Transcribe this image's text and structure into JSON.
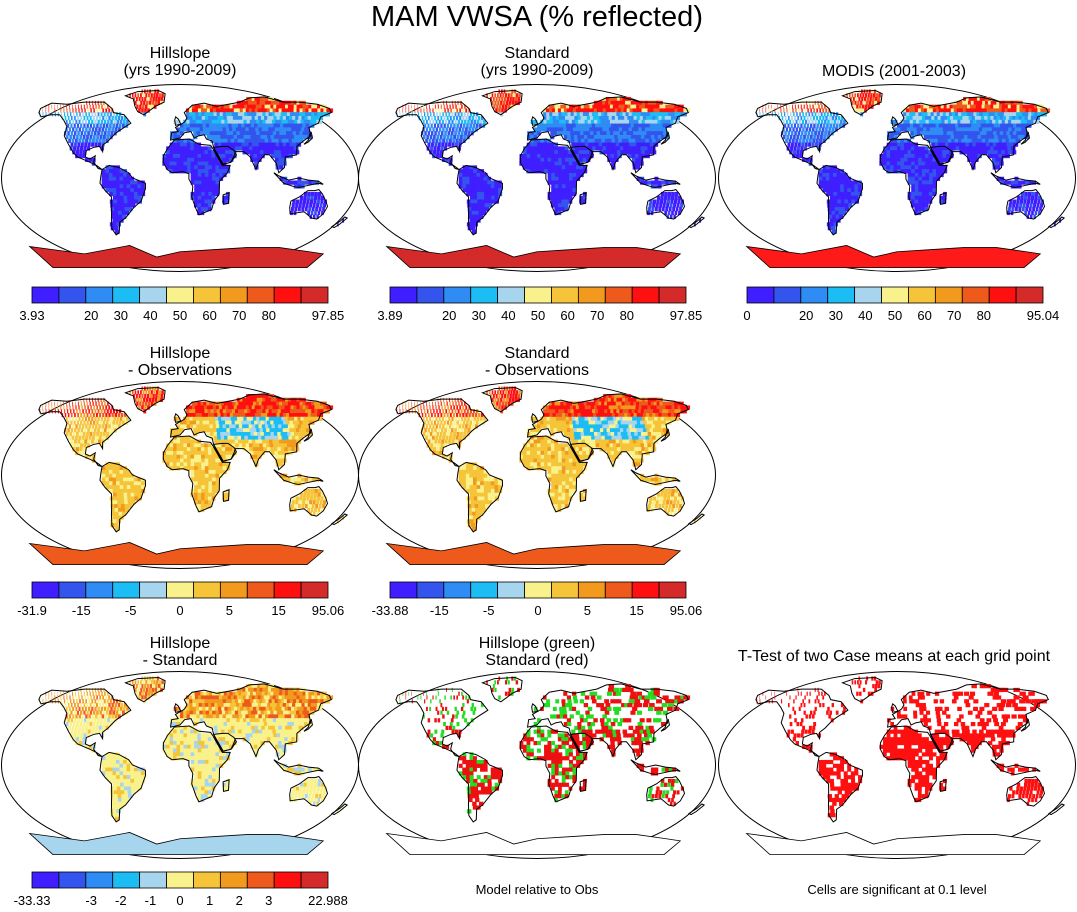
{
  "title": "MAM VWSA (% reflected)",
  "palettes": {
    "main": [
      "#3f1fff",
      "#3355ee",
      "#2f8cf5",
      "#1cbcf5",
      "#a8d5ee",
      "#f9f18b",
      "#f5c438",
      "#f19a1e",
      "#ee5a1c",
      "#ff1010",
      "#d42a2a"
    ],
    "mainbar": [
      "#3f1fff",
      "#3355ee",
      "#2f8cf5",
      "#1cbcf5",
      "#a8d5ee",
      "#f9f18b",
      "#f5c438",
      "#f19a1e",
      "#ee5a1c",
      "#ff1010",
      "#d42a2a"
    ]
  },
  "panels": [
    {
      "id": "hillslope",
      "title": [
        "Hillslope",
        "(yrs 1990-2009)"
      ],
      "kind": "abs",
      "antarctica": "#d42a2a",
      "colorbar": [
        "3.93",
        "",
        "20",
        "30",
        "40",
        "50",
        "60",
        "70",
        "80",
        "",
        "97.85"
      ]
    },
    {
      "id": "standard",
      "title": [
        "Standard",
        "(yrs 1990-2009)"
      ],
      "kind": "abs",
      "antarctica": "#d42a2a",
      "colorbar": [
        "3.89",
        "",
        "20",
        "30",
        "40",
        "50",
        "60",
        "70",
        "80",
        "",
        "97.85"
      ]
    },
    {
      "id": "modis",
      "title": [
        "MODIS (2001-2003)"
      ],
      "kind": "modis",
      "antarctica": "#ff1a1a",
      "colorbar": [
        "0",
        "",
        "20",
        "30",
        "40",
        "50",
        "60",
        "70",
        "80",
        "",
        "95.04"
      ]
    },
    {
      "id": "hill-obs",
      "title": [
        "Hillslope",
        "- Observations"
      ],
      "kind": "diff",
      "antarctica": "#ee5a1c",
      "colorbar": [
        "-31.9",
        "",
        "-15",
        "",
        "-5",
        "",
        "0",
        "",
        "5",
        "",
        "15",
        "",
        "95.06"
      ]
    },
    {
      "id": "std-obs",
      "title": [
        "Standard",
        "- Observations"
      ],
      "kind": "diff",
      "antarctica": "#ee5a1c",
      "colorbar": [
        "-33.88",
        "",
        "-15",
        "",
        "-5",
        "",
        "0",
        "",
        "5",
        "",
        "15",
        "",
        "95.06"
      ]
    },
    {
      "id": "hill-std",
      "title": [
        "Hillslope",
        "- Standard"
      ],
      "kind": "hs",
      "antarctica": "#a8d5ee",
      "colorbar": [
        "-33.33",
        "",
        "-3",
        "-2",
        "-1",
        "0",
        "1",
        "2",
        "3",
        "",
        "22.988"
      ]
    },
    {
      "id": "green-red",
      "title": [
        "Hillslope (green)",
        "Standard (red)"
      ],
      "kind": "gr",
      "antarctica": "#ffffff",
      "caption": "Model relative to Obs"
    },
    {
      "id": "ttest",
      "title": [
        "T-Test of two Case means at each grid point"
      ],
      "kind": "tt",
      "antarctica": "#ffffff",
      "caption": "Cells are significant at 0.1 level"
    }
  ]
}
